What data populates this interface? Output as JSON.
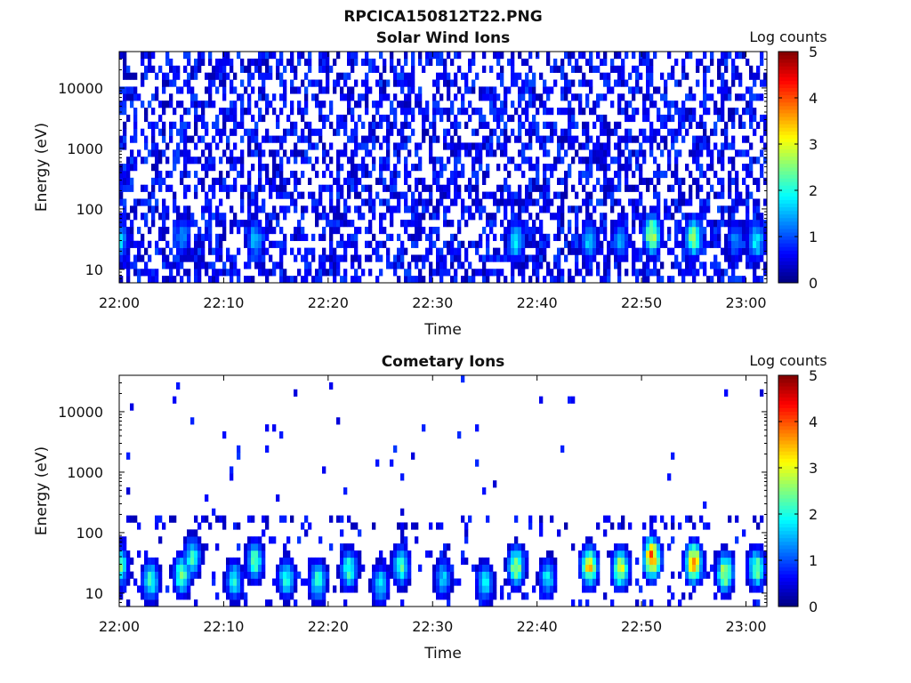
{
  "figure_title": "RPCICA150812T22.PNG",
  "chart_data": [
    {
      "type": "heatmap",
      "title": "Solar Wind Ions",
      "xlabel": "Time",
      "ylabel": "Energy (eV)",
      "x_ticks": [
        "22:00",
        "22:10",
        "22:20",
        "22:30",
        "22:40",
        "22:50",
        "23:00"
      ],
      "x_range_minutes": [
        0,
        62
      ],
      "y_scale": "log",
      "y_ticks": [
        {
          "value": 10,
          "label": "10"
        },
        {
          "value": 100,
          "label": "100"
        },
        {
          "value": 1000,
          "label": "1000"
        },
        {
          "value": 10000,
          "label": "10000"
        }
      ],
      "y_range": [
        6,
        40000
      ],
      "colorbar": {
        "label": "Log counts",
        "range": [
          0,
          5
        ],
        "ticks": [
          "0",
          "1",
          "2",
          "3",
          "4",
          "5"
        ],
        "colormap": "jet"
      },
      "bursts": [
        {
          "time": "22:00",
          "energy_ev": 30,
          "log_counts": 1.8
        },
        {
          "time": "22:06",
          "energy_ev": 35,
          "log_counts": 1.3
        },
        {
          "time": "22:13",
          "energy_ev": 32,
          "log_counts": 1.6
        },
        {
          "time": "22:38",
          "energy_ev": 30,
          "log_counts": 1.9
        },
        {
          "time": "22:45",
          "energy_ev": 30,
          "log_counts": 1.7
        },
        {
          "time": "22:48",
          "energy_ev": 30,
          "log_counts": 1.5
        },
        {
          "time": "22:51",
          "energy_ev": 38,
          "log_counts": 2.9
        },
        {
          "time": "22:55",
          "energy_ev": 35,
          "log_counts": 2.6
        },
        {
          "time": "22:59",
          "energy_ev": 30,
          "log_counts": 1.4
        },
        {
          "time": "23:01",
          "energy_ev": 30,
          "log_counts": 1.9
        }
      ],
      "background": "sparse noise at 0-1 log counts across all energies"
    },
    {
      "type": "heatmap",
      "title": "Cometary Ions",
      "xlabel": "Time",
      "ylabel": "Energy (eV)",
      "x_ticks": [
        "22:00",
        "22:10",
        "22:20",
        "22:30",
        "22:40",
        "22:50",
        "23:00"
      ],
      "x_range_minutes": [
        0,
        62
      ],
      "y_scale": "log",
      "y_ticks": [
        {
          "value": 10,
          "label": "10"
        },
        {
          "value": 100,
          "label": "100"
        },
        {
          "value": 1000,
          "label": "1000"
        },
        {
          "value": 10000,
          "label": "10000"
        }
      ],
      "y_range": [
        6,
        40000
      ],
      "colorbar": {
        "label": "Log counts",
        "range": [
          0,
          5
        ],
        "ticks": [
          "0",
          "1",
          "2",
          "3",
          "4",
          "5"
        ],
        "colormap": "jet"
      },
      "bursts": [
        {
          "time": "22:00",
          "energy_ev": 28,
          "log_counts": 2.5
        },
        {
          "time": "22:03",
          "energy_ev": 16,
          "log_counts": 2.2
        },
        {
          "time": "22:06",
          "energy_ev": 20,
          "log_counts": 2.4
        },
        {
          "time": "22:07",
          "energy_ev": 40,
          "log_counts": 2.1
        },
        {
          "time": "22:11",
          "energy_ev": 16,
          "log_counts": 1.9
        },
        {
          "time": "22:13",
          "energy_ev": 35,
          "log_counts": 2.3
        },
        {
          "time": "22:16",
          "energy_ev": 18,
          "log_counts": 2.0
        },
        {
          "time": "22:19",
          "energy_ev": 16,
          "log_counts": 2.1
        },
        {
          "time": "22:22",
          "energy_ev": 25,
          "log_counts": 2.2
        },
        {
          "time": "22:25",
          "energy_ev": 14,
          "log_counts": 1.8
        },
        {
          "time": "22:27",
          "energy_ev": 28,
          "log_counts": 2.2
        },
        {
          "time": "22:31",
          "energy_ev": 18,
          "log_counts": 1.6
        },
        {
          "time": "22:35",
          "energy_ev": 15,
          "log_counts": 1.9
        },
        {
          "time": "22:38",
          "energy_ev": 28,
          "log_counts": 2.7
        },
        {
          "time": "22:41",
          "energy_ev": 18,
          "log_counts": 1.8
        },
        {
          "time": "22:45",
          "energy_ev": 28,
          "log_counts": 3.3
        },
        {
          "time": "22:48",
          "energy_ev": 26,
          "log_counts": 2.9
        },
        {
          "time": "22:51",
          "energy_ev": 38,
          "log_counts": 4.0
        },
        {
          "time": "22:55",
          "energy_ev": 32,
          "log_counts": 3.6
        },
        {
          "time": "22:58",
          "energy_ev": 22,
          "log_counts": 2.8
        },
        {
          "time": "23:01",
          "energy_ev": 26,
          "log_counts": 2.5
        }
      ],
      "background": "faint 0-1 log count band near 100-200 eV and scattered single counts at higher energies"
    }
  ]
}
